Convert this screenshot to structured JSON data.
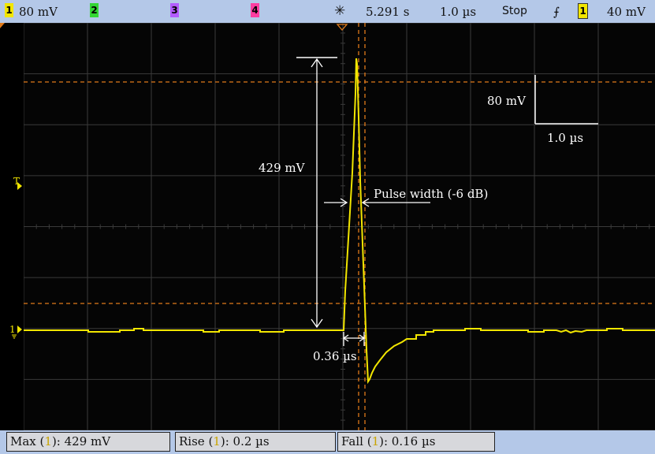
{
  "topbar": {
    "ch1_label": "1",
    "ch1_scale": "80 mV",
    "ch2_label": "2",
    "ch3_label": "3",
    "ch4_label": "4",
    "time_ref": "5.291 s",
    "timebase": "1.0 µs",
    "run_state": "Stop",
    "trigger_slope_icon": "rising-edge-icon",
    "trigger_channel": "1",
    "trigger_level": "40 mV"
  },
  "screen": {
    "amplitude_label": "429 mV",
    "pulse_width_label": "Pulse width (-6 dB)",
    "rise_width_label": "0.36 µs",
    "scale_v_label": "80 mV",
    "scale_t_label": "1.0 µs",
    "trigger_marker": "T",
    "ground_marker": "1"
  },
  "measurements": [
    {
      "name": "Max",
      "channel": "1",
      "value": ": 429 mV"
    },
    {
      "name": "Rise",
      "channel": "1",
      "value": ": 0.2 µs"
    },
    {
      "name": "Fall",
      "channel": "1",
      "value": ": 0.16 µs"
    }
  ],
  "colors": {
    "ch1": "#f2e600",
    "ch2": "#34d634",
    "ch3": "#b35cff",
    "ch4": "#ff3da0",
    "cursor": "#e07a1a",
    "grid": "#3a3a3a",
    "bar": "#b4c8e8"
  }
}
